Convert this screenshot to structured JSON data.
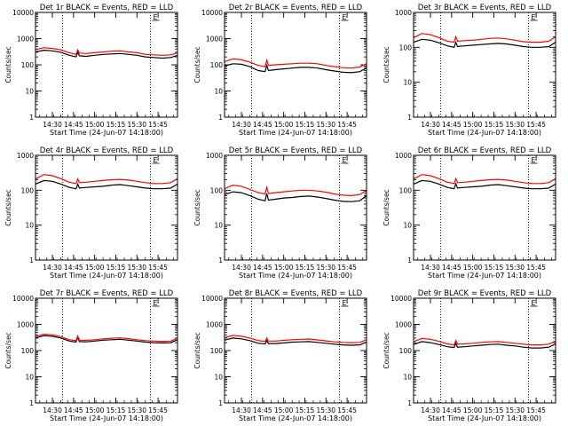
{
  "colors": {
    "events": "#000000",
    "lld": "#ff0000",
    "frame": "#000000",
    "background": "#ffffff"
  },
  "chart_data": [
    {
      "type": "line",
      "title": "Det 1r BLACK = Events, RED = LLD",
      "xlabel": "Start Time (24-Jun-07 14:18:00)",
      "ylabel": "Counts/sec",
      "yscale": "log",
      "ylim": [
        1,
        10000
      ],
      "yticks": [
        "1",
        "10",
        "100",
        "1000",
        "10000"
      ],
      "xlim": [
        14.3,
        15.98
      ],
      "xticks": [
        "14:30",
        "14:45",
        "15:00",
        "15:15",
        "15:30",
        "15:45"
      ],
      "vlines": [
        14.62,
        15.66
      ],
      "marker": "E",
      "x": [
        14.3,
        14.4,
        14.5,
        14.6,
        14.7,
        14.78,
        14.8,
        14.82,
        14.9,
        15.0,
        15.1,
        15.2,
        15.3,
        15.4,
        15.5,
        15.6,
        15.7,
        15.8,
        15.9,
        15.98
      ],
      "series": [
        {
          "name": "Events",
          "color": "#000000",
          "values": [
            310,
            360,
            340,
            300,
            230,
            200,
            300,
            220,
            210,
            230,
            250,
            260,
            270,
            250,
            230,
            200,
            190,
            180,
            190,
            230
          ]
        },
        {
          "name": "LLD",
          "color": "#ff0000",
          "values": [
            380,
            450,
            420,
            370,
            290,
            250,
            370,
            280,
            270,
            290,
            310,
            330,
            340,
            310,
            290,
            250,
            240,
            230,
            240,
            290
          ]
        }
      ]
    },
    {
      "type": "line",
      "title": "Det 2r BLACK = Events, RED = LLD",
      "xlabel": "Start Time (24-Jun-07 14:18:00)",
      "ylabel": "Counts/sec",
      "yscale": "log",
      "ylim": [
        1,
        10000
      ],
      "yticks": [
        "1",
        "10",
        "100",
        "1000",
        "10000"
      ],
      "xlim": [
        14.3,
        15.98
      ],
      "xticks": [
        "14:30",
        "14:45",
        "15:00",
        "15:15",
        "15:30",
        "15:45"
      ],
      "vlines": [
        14.62,
        15.66
      ],
      "marker": "E",
      "x": [
        14.3,
        14.4,
        14.5,
        14.6,
        14.7,
        14.78,
        14.8,
        14.82,
        14.9,
        15.0,
        15.1,
        15.2,
        15.3,
        15.4,
        15.5,
        15.6,
        15.7,
        15.8,
        15.9,
        15.98
      ],
      "series": [
        {
          "name": "Events",
          "color": "#000000",
          "values": [
            90,
            110,
            105,
            85,
            60,
            55,
            95,
            60,
            65,
            70,
            75,
            80,
            80,
            75,
            65,
            58,
            52,
            50,
            55,
            75
          ]
        },
        {
          "name": "LLD",
          "color": "#ff0000",
          "values": [
            130,
            170,
            155,
            125,
            95,
            85,
            150,
            95,
            100,
            105,
            110,
            115,
            115,
            110,
            95,
            85,
            78,
            75,
            82,
            110
          ]
        }
      ]
    },
    {
      "type": "line",
      "title": "Det 3r BLACK = Events, RED = LLD",
      "xlabel": "Start Time (24-Jun-07 14:18:00)",
      "ylabel": "Counts/sec",
      "yscale": "log",
      "ylim": [
        1,
        1000
      ],
      "yticks": [
        "1",
        "10",
        "100",
        "1000"
      ],
      "xlim": [
        14.3,
        15.98
      ],
      "xticks": [
        "14:30",
        "14:45",
        "15:00",
        "15:15",
        "15:30",
        "15:45"
      ],
      "vlines": [
        14.62,
        15.66
      ],
      "marker": "E",
      "x": [
        14.3,
        14.4,
        14.5,
        14.6,
        14.7,
        14.78,
        14.8,
        14.82,
        14.9,
        15.0,
        15.1,
        15.2,
        15.3,
        15.4,
        15.5,
        15.6,
        15.7,
        15.8,
        15.9,
        15.98
      ],
      "series": [
        {
          "name": "Events",
          "color": "#000000",
          "values": [
            140,
            170,
            160,
            135,
            110,
            100,
            140,
            105,
            110,
            115,
            120,
            125,
            130,
            125,
            115,
            105,
            100,
            100,
            105,
            140
          ]
        },
        {
          "name": "LLD",
          "color": "#ff0000",
          "values": [
            190,
            250,
            230,
            190,
            150,
            140,
            200,
            150,
            155,
            160,
            170,
            180,
            185,
            175,
            160,
            145,
            140,
            140,
            150,
            200
          ]
        }
      ]
    },
    {
      "type": "line",
      "title": "Det 4r BLACK = Events, RED = LLD",
      "xlabel": "Start Time (24-Jun-07 14:18:00)",
      "ylabel": "Counts/sec",
      "yscale": "log",
      "ylim": [
        1,
        1000
      ],
      "yticks": [
        "1",
        "10",
        "100",
        "1000"
      ],
      "xlim": [
        14.3,
        15.98
      ],
      "xticks": [
        "14:30",
        "14:45",
        "15:00",
        "15:15",
        "15:30",
        "15:45"
      ],
      "vlines": [
        14.62,
        15.66
      ],
      "marker": "E",
      "x": [
        14.3,
        14.4,
        14.5,
        14.6,
        14.7,
        14.78,
        14.8,
        14.82,
        14.9,
        15.0,
        15.1,
        15.2,
        15.3,
        15.4,
        15.5,
        15.6,
        15.7,
        15.8,
        15.9,
        15.98
      ],
      "series": [
        {
          "name": "Events",
          "color": "#000000",
          "values": [
            150,
            190,
            180,
            150,
            120,
            110,
            150,
            115,
            120,
            125,
            130,
            140,
            145,
            135,
            125,
            115,
            110,
            110,
            115,
            150
          ]
        },
        {
          "name": "LLD",
          "color": "#ff0000",
          "values": [
            210,
            280,
            260,
            215,
            170,
            155,
            210,
            165,
            170,
            180,
            190,
            200,
            205,
            195,
            180,
            165,
            155,
            155,
            165,
            215
          ]
        }
      ]
    },
    {
      "type": "line",
      "title": "Det 5r BLACK = Events, RED = LLD",
      "xlabel": "Start Time (24-Jun-07 14:18:00)",
      "ylabel": "Counts/sec",
      "yscale": "log",
      "ylim": [
        1,
        1000
      ],
      "yticks": [
        "1",
        "10",
        "100",
        "1000"
      ],
      "xlim": [
        14.3,
        15.98
      ],
      "xticks": [
        "14:30",
        "14:45",
        "15:00",
        "15:15",
        "15:30",
        "15:45"
      ],
      "vlines": [
        14.62,
        15.66
      ],
      "marker": "E",
      "x": [
        14.3,
        14.4,
        14.5,
        14.6,
        14.7,
        14.78,
        14.8,
        14.82,
        14.9,
        15.0,
        15.1,
        15.2,
        15.3,
        15.4,
        15.5,
        15.6,
        15.7,
        15.8,
        15.9,
        15.98
      ],
      "series": [
        {
          "name": "Events",
          "color": "#000000",
          "values": [
            75,
            90,
            85,
            70,
            55,
            50,
            80,
            52,
            55,
            60,
            62,
            66,
            68,
            64,
            58,
            52,
            48,
            47,
            50,
            70
          ]
        },
        {
          "name": "LLD",
          "color": "#ff0000",
          "values": [
            110,
            140,
            130,
            105,
            85,
            78,
            120,
            80,
            85,
            90,
            95,
            100,
            100,
            95,
            88,
            78,
            72,
            70,
            75,
            100
          ]
        }
      ]
    },
    {
      "type": "line",
      "title": "Det 6r BLACK = Events, RED = LLD",
      "xlabel": "Start Time (24-Jun-07 14:18:00)",
      "ylabel": "Counts/sec",
      "yscale": "log",
      "ylim": [
        1,
        1000
      ],
      "yticks": [
        "1",
        "10",
        "100",
        "1000"
      ],
      "xlim": [
        14.3,
        15.98
      ],
      "xticks": [
        "14:30",
        "14:45",
        "15:00",
        "15:15",
        "15:30",
        "15:45"
      ],
      "vlines": [
        14.62,
        15.66
      ],
      "marker": "E",
      "x": [
        14.3,
        14.4,
        14.5,
        14.6,
        14.7,
        14.78,
        14.8,
        14.82,
        14.9,
        15.0,
        15.1,
        15.2,
        15.3,
        15.4,
        15.5,
        15.6,
        15.7,
        15.8,
        15.9,
        15.98
      ],
      "series": [
        {
          "name": "Events",
          "color": "#000000",
          "values": [
            150,
            190,
            180,
            150,
            120,
            110,
            155,
            115,
            120,
            125,
            130,
            140,
            145,
            135,
            125,
            115,
            110,
            110,
            115,
            150
          ]
        },
        {
          "name": "LLD",
          "color": "#ff0000",
          "values": [
            210,
            280,
            260,
            215,
            170,
            155,
            215,
            165,
            170,
            180,
            190,
            200,
            205,
            195,
            180,
            165,
            155,
            155,
            165,
            215
          ]
        }
      ]
    },
    {
      "type": "line",
      "title": "Det 7r BLACK = Events, RED = LLD",
      "xlabel": "Start Time (24-Jun-07 14:18:00)",
      "ylabel": "Counts/sec",
      "yscale": "log",
      "ylim": [
        1,
        10000
      ],
      "yticks": [
        "1",
        "10",
        "100",
        "1000",
        "10000"
      ],
      "xlim": [
        14.3,
        15.98
      ],
      "xticks": [
        "14:30",
        "14:45",
        "15:00",
        "15:15",
        "15:30",
        "15:45"
      ],
      "vlines": [
        14.62,
        15.66
      ],
      "marker": "E",
      "x": [
        14.3,
        14.4,
        14.5,
        14.6,
        14.7,
        14.78,
        14.8,
        14.82,
        14.9,
        15.0,
        15.1,
        15.2,
        15.3,
        15.4,
        15.5,
        15.6,
        15.7,
        15.8,
        15.9,
        15.98
      ],
      "series": [
        {
          "name": "Events",
          "color": "#000000",
          "values": [
            300,
            370,
            350,
            300,
            230,
            210,
            320,
            220,
            215,
            230,
            250,
            260,
            270,
            250,
            230,
            210,
            200,
            195,
            200,
            260
          ]
        },
        {
          "name": "LLD",
          "color": "#ff0000",
          "values": [
            340,
            420,
            400,
            340,
            260,
            240,
            360,
            250,
            245,
            260,
            280,
            295,
            305,
            285,
            260,
            240,
            230,
            225,
            230,
            300
          ]
        }
      ]
    },
    {
      "type": "line",
      "title": "Det 8r BLACK = Events, RED = LLD",
      "xlabel": "Start Time (24-Jun-07 14:18:00)",
      "ylabel": "Counts/sec",
      "yscale": "log",
      "ylim": [
        1,
        10000
      ],
      "yticks": [
        "1",
        "10",
        "100",
        "1000",
        "10000"
      ],
      "xlim": [
        14.3,
        15.98
      ],
      "xticks": [
        "14:30",
        "14:45",
        "15:00",
        "15:15",
        "15:30",
        "15:45"
      ],
      "vlines": [
        14.62,
        15.66
      ],
      "marker": "E",
      "x": [
        14.3,
        14.4,
        14.5,
        14.6,
        14.7,
        14.78,
        14.8,
        14.82,
        14.9,
        15.0,
        15.1,
        15.2,
        15.3,
        15.4,
        15.5,
        15.6,
        15.7,
        15.8,
        15.9,
        15.98
      ],
      "series": [
        {
          "name": "Events",
          "color": "#000000",
          "values": [
            250,
            300,
            280,
            240,
            190,
            180,
            240,
            185,
            185,
            195,
            210,
            215,
            220,
            205,
            190,
            175,
            165,
            160,
            165,
            210
          ]
        },
        {
          "name": "LLD",
          "color": "#ff0000",
          "values": [
            310,
            380,
            350,
            300,
            240,
            225,
            300,
            230,
            230,
            245,
            260,
            270,
            275,
            255,
            235,
            215,
            205,
            200,
            205,
            260
          ]
        }
      ]
    },
    {
      "type": "line",
      "title": "Det 9r BLACK = Events, RED = LLD",
      "xlabel": "Start Time (24-Jun-07 14:18:00)",
      "ylabel": "Counts/sec",
      "yscale": "log",
      "ylim": [
        1,
        10000
      ],
      "yticks": [
        "1",
        "10",
        "100",
        "1000",
        "10000"
      ],
      "xlim": [
        14.3,
        15.98
      ],
      "xticks": [
        "14:30",
        "14:45",
        "15:00",
        "15:15",
        "15:30",
        "15:45"
      ],
      "vlines": [
        14.62,
        15.66
      ],
      "marker": "E",
      "x": [
        14.3,
        14.4,
        14.5,
        14.6,
        14.7,
        14.78,
        14.8,
        14.82,
        14.9,
        15.0,
        15.1,
        15.2,
        15.3,
        15.4,
        15.5,
        15.6,
        15.7,
        15.8,
        15.9,
        15.98
      ],
      "series": [
        {
          "name": "Events",
          "color": "#000000",
          "values": [
            170,
            220,
            200,
            170,
            140,
            130,
            190,
            135,
            140,
            150,
            160,
            170,
            175,
            160,
            150,
            135,
            125,
            125,
            135,
            180
          ]
        },
        {
          "name": "LLD",
          "color": "#ff0000",
          "values": [
            220,
            290,
            270,
            225,
            180,
            165,
            240,
            175,
            180,
            190,
            205,
            215,
            220,
            205,
            190,
            175,
            165,
            165,
            175,
            230
          ]
        }
      ]
    }
  ]
}
